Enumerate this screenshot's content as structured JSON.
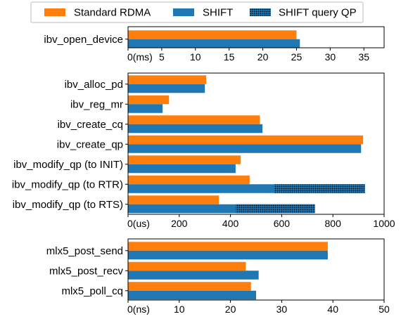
{
  "colors": {
    "standard": "#ff7f0e",
    "shift": "#1f77b4",
    "query_qp_fill": "#1f77b4",
    "query_qp_dots": "#000000"
  },
  "legend": [
    {
      "label": "Standard RDMA",
      "style": "standard"
    },
    {
      "label": "SHIFT",
      "style": "shift"
    },
    {
      "label": "SHIFT query QP",
      "style": "query"
    }
  ],
  "chart_data": [
    {
      "type": "bar",
      "orientation": "horizontal",
      "categories": [
        "ibv_open_device"
      ],
      "series": [
        {
          "name": "Standard RDMA",
          "values": [
            25
          ]
        },
        {
          "name": "SHIFT",
          "values": [
            25.5
          ]
        }
      ],
      "xlim": [
        0,
        38
      ],
      "ticks": [
        0,
        5,
        10,
        15,
        20,
        25,
        30,
        35
      ],
      "tick_labels": [
        "0(ms)",
        "5",
        "10",
        "15",
        "20",
        "25",
        "30",
        "35"
      ]
    },
    {
      "type": "bar",
      "orientation": "horizontal",
      "categories": [
        "ibv_alloc_pd",
        "ibv_reg_mr",
        "ibv_create_cq",
        "ibv_create_qp",
        "ibv_modify_qp (to INIT)",
        "ibv_modify_qp (to RTR)",
        "ibv_modify_qp (to RTS)"
      ],
      "series": [
        {
          "name": "Standard RDMA",
          "values": [
            305,
            160,
            515,
            918,
            440,
            475,
            355
          ]
        },
        {
          "name": "SHIFT",
          "values": [
            300,
            135,
            525,
            910,
            420,
            925,
            730
          ],
          "query_qp_segment": [
            null,
            null,
            null,
            null,
            null,
            [
              570,
              925
            ],
            [
              420,
              730
            ]
          ]
        }
      ],
      "xlim": [
        0,
        1000
      ],
      "ticks": [
        0,
        200,
        400,
        600,
        800,
        1000
      ],
      "tick_labels": [
        "0(us)",
        "200",
        "400",
        "600",
        "800",
        "1000"
      ]
    },
    {
      "type": "bar",
      "orientation": "horizontal",
      "categories": [
        "mlx5_post_send",
        "mlx5_post_recv",
        "mlx5_poll_cq"
      ],
      "series": [
        {
          "name": "Standard RDMA",
          "values": [
            39,
            23,
            24
          ]
        },
        {
          "name": "SHIFT",
          "values": [
            39,
            25.5,
            25
          ]
        }
      ],
      "xlim": [
        0,
        50
      ],
      "ticks": [
        0,
        10,
        20,
        30,
        40,
        50
      ],
      "tick_labels": [
        "0(ns)",
        "10",
        "20",
        "30",
        "40",
        "50"
      ]
    }
  ]
}
